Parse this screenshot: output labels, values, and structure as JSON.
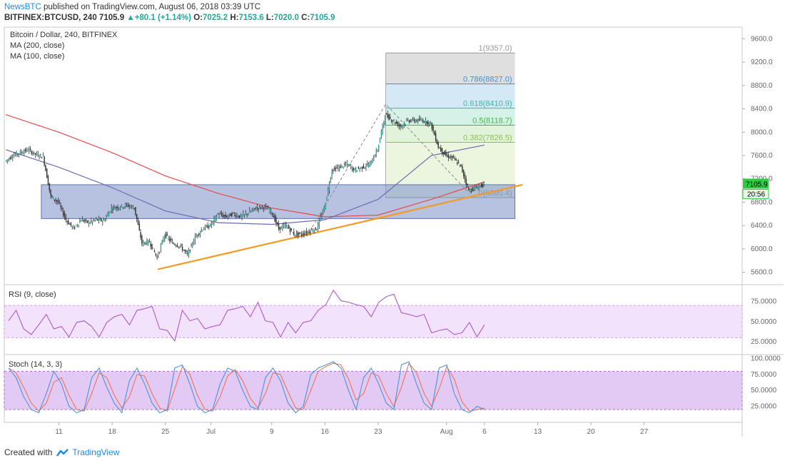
{
  "header": {
    "brand": "NewsBTC",
    "published": " published on TradingView.com, August 06, 2018 03:39 UTC",
    "symbol": "BITFINEX:BTCUSD, 240",
    "last": "7105.9",
    "change": "▲+80.1 (+1.14%)",
    "o_label": "O:",
    "o": "7025.2",
    "h_label": "H:",
    "h": "7153.6",
    "l_label": "L:",
    "l": "7020.0",
    "c_label": "C:",
    "c": "7105.9"
  },
  "footer": {
    "created_with": "Created with",
    "brand": "TradingView"
  },
  "colors": {
    "up": "#26a69a",
    "down": "#ef5350",
    "candle_body": "#2e2e2e",
    "ma200": "#e44b4b",
    "ma100": "#6a6bb3",
    "trendline": "#f59a23",
    "zone": "#7b8fc7",
    "rsi": "#a64dc7",
    "stoch_k": "#3d8fd8",
    "stoch_d": "#ef6c4a",
    "price_badge": "#2ecc40"
  },
  "chart_data": [
    {
      "type": "candlestick",
      "title": "Bitcoin / Dollar, 240, BITFINEX",
      "legend": [
        "MA (200, close)",
        "MA (100, close)"
      ],
      "y_ticks": [
        5600,
        6000,
        6400,
        6800,
        7200,
        7600,
        8000,
        8400,
        8800,
        9200,
        9600
      ],
      "ylim": [
        5400,
        9800
      ],
      "x_ticks": [
        "11",
        "18",
        "25",
        "Jul",
        "9",
        "16",
        "23",
        "Aug",
        "6",
        "13",
        "20",
        "27"
      ],
      "current_price": "7105.9",
      "countdown": "20:56",
      "price_path": [
        [
          "Jun 4",
          7500
        ],
        [
          "Jun 5",
          7600
        ],
        [
          "Jun 6",
          7650
        ],
        [
          "Jun 7",
          7700
        ],
        [
          "Jun 8",
          7620
        ],
        [
          "Jun 9",
          7580
        ],
        [
          "Jun 10",
          6900
        ],
        [
          "Jun 11",
          6800
        ],
        [
          "Jun 12",
          6500
        ],
        [
          "Jun 13",
          6350
        ],
        [
          "Jun 14",
          6500
        ],
        [
          "Jun 15",
          6450
        ],
        [
          "Jun 16",
          6500
        ],
        [
          "Jun 17",
          6480
        ],
        [
          "Jun 18",
          6700
        ],
        [
          "Jun 19",
          6720
        ],
        [
          "Jun 20",
          6750
        ],
        [
          "Jun 21",
          6700
        ],
        [
          "Jun 22",
          6100
        ],
        [
          "Jun 23",
          6120
        ],
        [
          "Jun 24",
          5850
        ],
        [
          "Jun 25",
          6250
        ],
        [
          "Jun 26",
          6100
        ],
        [
          "Jun 27",
          6050
        ],
        [
          "Jun 28",
          5900
        ],
        [
          "Jun 29",
          6200
        ],
        [
          "Jun 30",
          6350
        ],
        [
          "Jul 1",
          6400
        ],
        [
          "Jul 2",
          6600
        ],
        [
          "Jul 3",
          6550
        ],
        [
          "Jul 4",
          6600
        ],
        [
          "Jul 5",
          6550
        ],
        [
          "Jul 6",
          6620
        ],
        [
          "Jul 7",
          6700
        ],
        [
          "Jul 8",
          6720
        ],
        [
          "Jul 9",
          6650
        ],
        [
          "Jul 10",
          6350
        ],
        [
          "Jul 11",
          6400
        ],
        [
          "Jul 12",
          6250
        ],
        [
          "Jul 13",
          6250
        ],
        [
          "Jul 14",
          6300
        ],
        [
          "Jul 15",
          6350
        ],
        [
          "Jul 16",
          6700
        ],
        [
          "Jul 17",
          7350
        ],
        [
          "Jul 18",
          7400
        ],
        [
          "Jul 19",
          7450
        ],
        [
          "Jul 20",
          7350
        ],
        [
          "Jul 21",
          7400
        ],
        [
          "Jul 22",
          7450
        ],
        [
          "Jul 23",
          7700
        ],
        [
          "Jul 24",
          8300
        ],
        [
          "Jul 25",
          8200
        ],
        [
          "Jul 26",
          8100
        ],
        [
          "Jul 27",
          8200
        ],
        [
          "Jul 28",
          8200
        ],
        [
          "Jul 29",
          8200
        ],
        [
          "Jul 30",
          8150
        ],
        [
          "Jul 31",
          7750
        ],
        [
          "Aug 1",
          7600
        ],
        [
          "Aug 2",
          7550
        ],
        [
          "Aug 3",
          7400
        ],
        [
          "Aug 4",
          7000
        ],
        [
          "Aug 5",
          7050
        ],
        [
          "Aug 6",
          7105.9
        ]
      ],
      "ma200_path": [
        [
          "Jun 4",
          8300
        ],
        [
          "Jun 11",
          8000
        ],
        [
          "Jun 18",
          7650
        ],
        [
          "Jun 25",
          7250
        ],
        [
          "Jul 2",
          6950
        ],
        [
          "Jul 9",
          6700
        ],
        [
          "Jul 16",
          6550
        ],
        [
          "Jul 23",
          6580
        ],
        [
          "Jul 30",
          6850
        ],
        [
          "Aug 6",
          7150
        ]
      ],
      "ma100_path": [
        [
          "Jun 4",
          7700
        ],
        [
          "Jun 11",
          7400
        ],
        [
          "Jun 18",
          7050
        ],
        [
          "Jun 25",
          6650
        ],
        [
          "Jul 2",
          6450
        ],
        [
          "Jul 9",
          6420
        ],
        [
          "Jul 16",
          6500
        ],
        [
          "Jul 23",
          6850
        ],
        [
          "Jul 30",
          7600
        ],
        [
          "Aug 6",
          7780
        ]
      ],
      "trendline": [
        [
          "Jun 24",
          5650
        ],
        [
          "Aug 11",
          7100
        ]
      ],
      "support_zone": {
        "from": "Jun 10",
        "to": "Aug 10",
        "low": 6520,
        "high": 7100
      },
      "fibonacci": {
        "from": "Jul 24",
        "to": "Aug 10",
        "levels": [
          {
            "ratio": "1",
            "price": "9357.0",
            "value": 9357.0,
            "color": "#999999",
            "fill": "#dcdcdc"
          },
          {
            "ratio": "0.786",
            "price": "8827.0",
            "value": 8827.0,
            "color": "#3d8fd8",
            "fill": "#cfe6f5"
          },
          {
            "ratio": "0.618",
            "price": "8410.9",
            "value": 8410.9,
            "color": "#3bb89b",
            "fill": "#d1efe6"
          },
          {
            "ratio": "0.5",
            "price": "8118.7",
            "value": 8118.7,
            "color": "#4bb34b",
            "fill": "#dff2d8"
          },
          {
            "ratio": "0.382",
            "price": "7826.5",
            "value": 7826.5,
            "color": "#88c24a",
            "fill": "#eaf5dc"
          },
          {
            "ratio": "0",
            "price": "6880.4",
            "value": 6880.4,
            "color": "#999999",
            "fill": "#eaf5dc"
          }
        ]
      }
    },
    {
      "type": "line",
      "title": "RSI (9, close)",
      "y_ticks": [
        "75.0000",
        "50.0000",
        "25.0000"
      ],
      "ylim": [
        10,
        95
      ],
      "band": [
        30,
        70
      ],
      "values": [
        55,
        60,
        45,
        30,
        50,
        55,
        45,
        40,
        35,
        45,
        55,
        40,
        35,
        45,
        60,
        55,
        50,
        60,
        70,
        65,
        45,
        35,
        30,
        60,
        55,
        50,
        45,
        40,
        50,
        60,
        70,
        65,
        60,
        70,
        55,
        45,
        35,
        45,
        40,
        45,
        55,
        60,
        75,
        85,
        80,
        70,
        75,
        65,
        60,
        70,
        85,
        80,
        65,
        55,
        60,
        55,
        40,
        35,
        45,
        30,
        40,
        45,
        35,
        42
      ]
    },
    {
      "type": "line",
      "title": "Stoch (14, 3, 3)",
      "y_ticks": [
        "100.0000",
        "75.0000",
        "50.0000",
        "25.0000"
      ],
      "ylim": [
        0,
        105
      ],
      "band": [
        20,
        80
      ],
      "values": [
        85,
        70,
        40,
        20,
        15,
        45,
        80,
        60,
        25,
        15,
        20,
        70,
        85,
        55,
        30,
        15,
        65,
        85,
        60,
        30,
        15,
        20,
        85,
        90,
        60,
        25,
        15,
        20,
        60,
        85,
        80,
        50,
        25,
        20,
        70,
        85,
        65,
        30,
        15,
        25,
        75,
        85,
        90,
        95,
        85,
        50,
        20,
        70,
        85,
        60,
        30,
        20,
        90,
        95,
        60,
        30,
        20,
        85,
        90,
        45,
        20,
        15,
        25,
        20
      ]
    }
  ]
}
